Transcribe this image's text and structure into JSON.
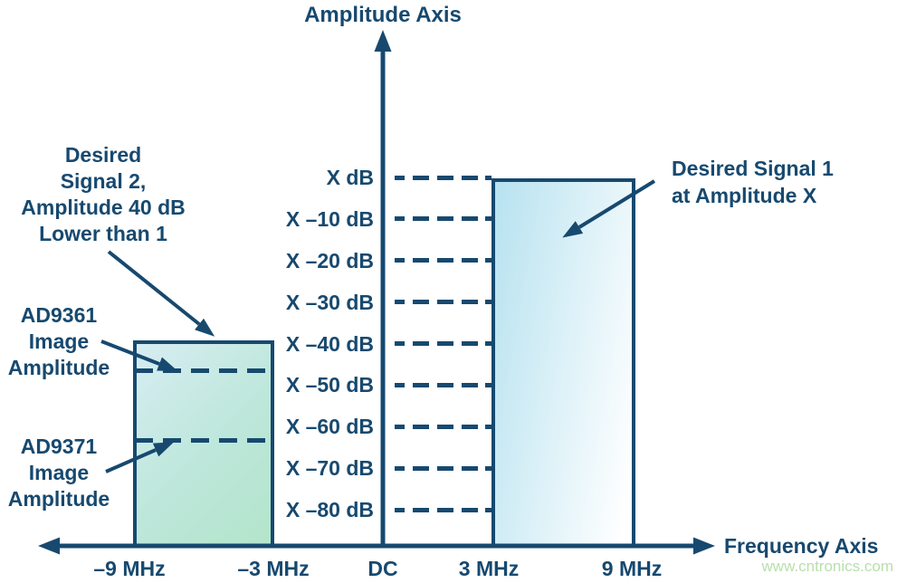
{
  "colors": {
    "navy": "#17496f",
    "left_bar_gradient": [
      "#d7edf2",
      "#bde7da",
      "#b3e5cb"
    ],
    "right_bar_gradient": [
      "#b7e2f0",
      "#ffffff"
    ],
    "watermark_green": "#b8e0ac"
  },
  "axes": {
    "amplitude_label": "Amplitude Axis",
    "frequency_label": "Frequency Axis"
  },
  "amplitude_levels": [
    "X dB",
    "X –10 dB",
    "X –20 dB",
    "X –30 dB",
    "X –40 dB",
    "X –50 dB",
    "X –60 dB",
    "X –70 dB",
    "X –80 dB"
  ],
  "frequency_ticks": [
    "–9 MHz",
    "–3 MHz",
    "DC",
    "3 MHz",
    "9 MHz"
  ],
  "annotations": {
    "desired_signal_2": "Desired\nSignal 2,\nAmplitude 40 dB\nLower than 1",
    "ad9361": "AD9361\nImage\nAmplitude",
    "ad9371": "AD9371\nImage\nAmplitude",
    "desired_signal_1": "Desired Signal 1\nat Amplitude X"
  },
  "watermark": "www.cntronics.com",
  "chart_data": {
    "type": "bar",
    "title": "",
    "xlabel": "Frequency Axis",
    "ylabel": "Amplitude Axis",
    "x_ticks": [
      "–9 MHz",
      "–3 MHz",
      "DC",
      "3 MHz",
      "9 MHz"
    ],
    "y_ticks": [
      "X dB",
      "X –10 dB",
      "X –20 dB",
      "X –30 dB",
      "X –40 dB",
      "X –50 dB",
      "X –60 dB",
      "X –70 dB",
      "X –80 dB"
    ],
    "bars": [
      {
        "name": "Desired Signal 1 at Amplitude X",
        "freq_range": [
          "3 MHz",
          "9 MHz"
        ],
        "amplitude": "X dB"
      },
      {
        "name": "Desired Signal 2, Amplitude 40 dB Lower than 1",
        "freq_range": [
          "–9 MHz",
          "–3 MHz"
        ],
        "amplitude": "X –40 dB"
      }
    ],
    "markers": [
      {
        "name": "AD9361 Image Amplitude",
        "amplitude": "between X –40 dB and X –50 dB",
        "freq_range": [
          "–9 MHz",
          "–3 MHz"
        ]
      },
      {
        "name": "AD9371 Image Amplitude",
        "amplitude": "between X –60 dB and X –70 dB",
        "freq_range": [
          "–9 MHz",
          "–3 MHz"
        ]
      }
    ],
    "legend_position": "none",
    "grid": "dashed amplitude reference lines between DC axis and 3 MHz"
  }
}
